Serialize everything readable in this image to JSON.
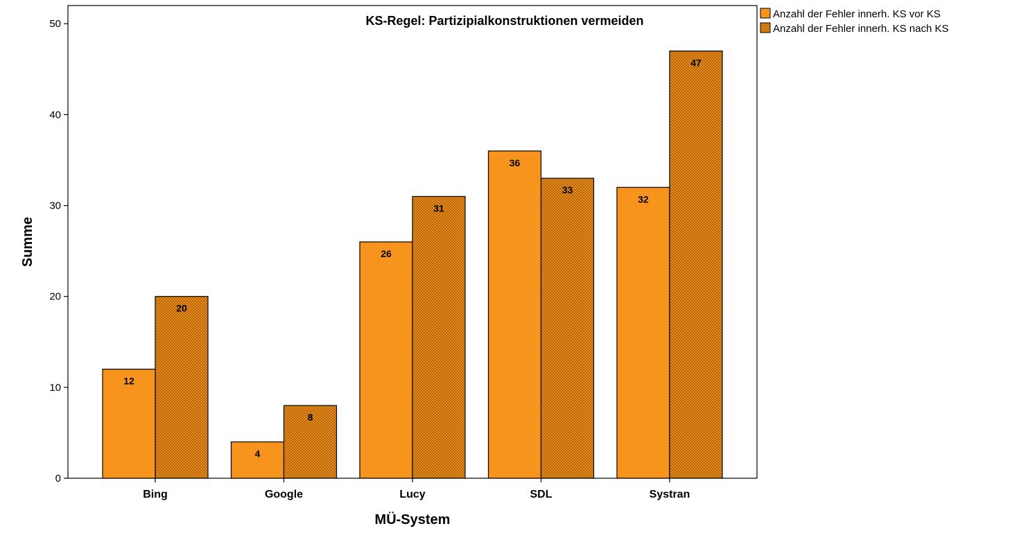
{
  "chart_data": {
    "type": "bar",
    "title": "KS-Regel: Partizipialkonstruktionen vermeiden",
    "xlabel": "MÜ-System",
    "ylabel": "Summe",
    "categories": [
      "Bing",
      "Google",
      "Lucy",
      "SDL",
      "Systran"
    ],
    "series": [
      {
        "name": "Anzahl der Fehler innerh. KS vor KS",
        "values": [
          12,
          4,
          26,
          36,
          32
        ],
        "color": "#f7941d",
        "pattern": "solid"
      },
      {
        "name": "Anzahl der Fehler innerh. KS nach KS",
        "values": [
          20,
          8,
          31,
          33,
          47
        ],
        "color": "#f7941d",
        "pattern": "crosshatch"
      }
    ],
    "ylim": [
      0,
      52
    ],
    "yticks": [
      0,
      10,
      20,
      30,
      40,
      50
    ],
    "grid": false,
    "legend_position": "top-right-outside",
    "data_labels": true
  }
}
